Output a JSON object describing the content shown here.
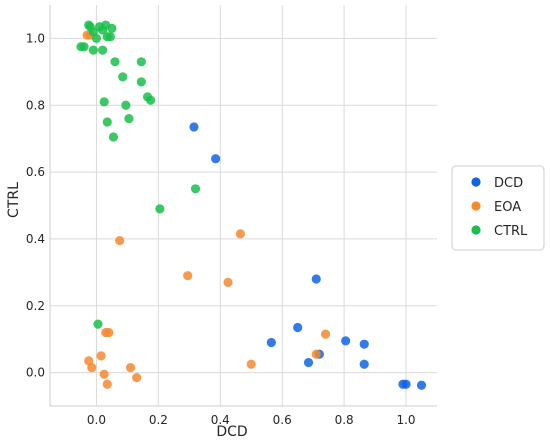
{
  "chart_data": {
    "type": "scatter",
    "xlabel": "DCD",
    "ylabel": "CTRL",
    "xlim": [
      -0.15,
      1.1
    ],
    "ylim": [
      -0.1,
      1.1
    ],
    "xticks": [
      "0.0",
      "0.2",
      "0.4",
      "0.6",
      "0.8",
      "1.0"
    ],
    "xtick_values": [
      0.0,
      0.2,
      0.4,
      0.6,
      0.8,
      1.0
    ],
    "yticks": [
      "0.0",
      "0.2",
      "0.4",
      "0.6",
      "0.8",
      "1.0"
    ],
    "ytick_values": [
      0.0,
      0.2,
      0.4,
      0.6,
      0.8,
      1.0
    ],
    "grid": true,
    "legend_position": "right",
    "series": [
      {
        "name": "DCD",
        "color": "#0f64e6",
        "points": [
          [
            0.315,
            0.735
          ],
          [
            0.385,
            0.64
          ],
          [
            0.71,
            0.28
          ],
          [
            0.565,
            0.09
          ],
          [
            0.65,
            0.135
          ],
          [
            0.685,
            0.03
          ],
          [
            0.72,
            0.055
          ],
          [
            0.805,
            0.095
          ],
          [
            0.865,
            0.085
          ],
          [
            0.865,
            0.025
          ],
          [
            0.99,
            -0.035
          ],
          [
            1.0,
            -0.035
          ],
          [
            1.05,
            -0.038
          ]
        ]
      },
      {
        "name": "EOA",
        "color": "#f5892e",
        "points": [
          [
            -0.03,
            1.01
          ],
          [
            -0.02,
            1.01
          ],
          [
            0.075,
            0.395
          ],
          [
            0.465,
            0.415
          ],
          [
            0.295,
            0.29
          ],
          [
            0.425,
            0.27
          ],
          [
            -0.025,
            0.035
          ],
          [
            -0.015,
            0.015
          ],
          [
            0.015,
            0.05
          ],
          [
            0.025,
            -0.005
          ],
          [
            0.03,
            0.12
          ],
          [
            0.04,
            0.12
          ],
          [
            0.035,
            -0.035
          ],
          [
            0.11,
            0.015
          ],
          [
            0.13,
            -0.015
          ],
          [
            0.5,
            0.025
          ],
          [
            0.74,
            0.115
          ],
          [
            0.71,
            0.055
          ]
        ]
      },
      {
        "name": "CTRL",
        "color": "#19bf4a",
        "points": [
          [
            -0.05,
            0.975
          ],
          [
            -0.04,
            0.975
          ],
          [
            -0.025,
            1.04
          ],
          [
            -0.02,
            1.035
          ],
          [
            -0.01,
            1.02
          ],
          [
            -0.01,
            0.965
          ],
          [
            0.0,
            1.0
          ],
          [
            0.01,
            1.035
          ],
          [
            0.02,
            0.965
          ],
          [
            0.02,
            1.025
          ],
          [
            0.03,
            1.04
          ],
          [
            0.035,
            1.005
          ],
          [
            0.045,
            1.005
          ],
          [
            0.05,
            1.03
          ],
          [
            0.06,
            0.93
          ],
          [
            0.085,
            0.885
          ],
          [
            0.095,
            0.8
          ],
          [
            0.025,
            0.81
          ],
          [
            0.035,
            0.75
          ],
          [
            0.055,
            0.705
          ],
          [
            0.105,
            0.76
          ],
          [
            0.145,
            0.93
          ],
          [
            0.145,
            0.87
          ],
          [
            0.165,
            0.825
          ],
          [
            0.175,
            0.815
          ],
          [
            0.205,
            0.49
          ],
          [
            0.32,
            0.55
          ],
          [
            0.005,
            0.145
          ]
        ]
      }
    ]
  }
}
